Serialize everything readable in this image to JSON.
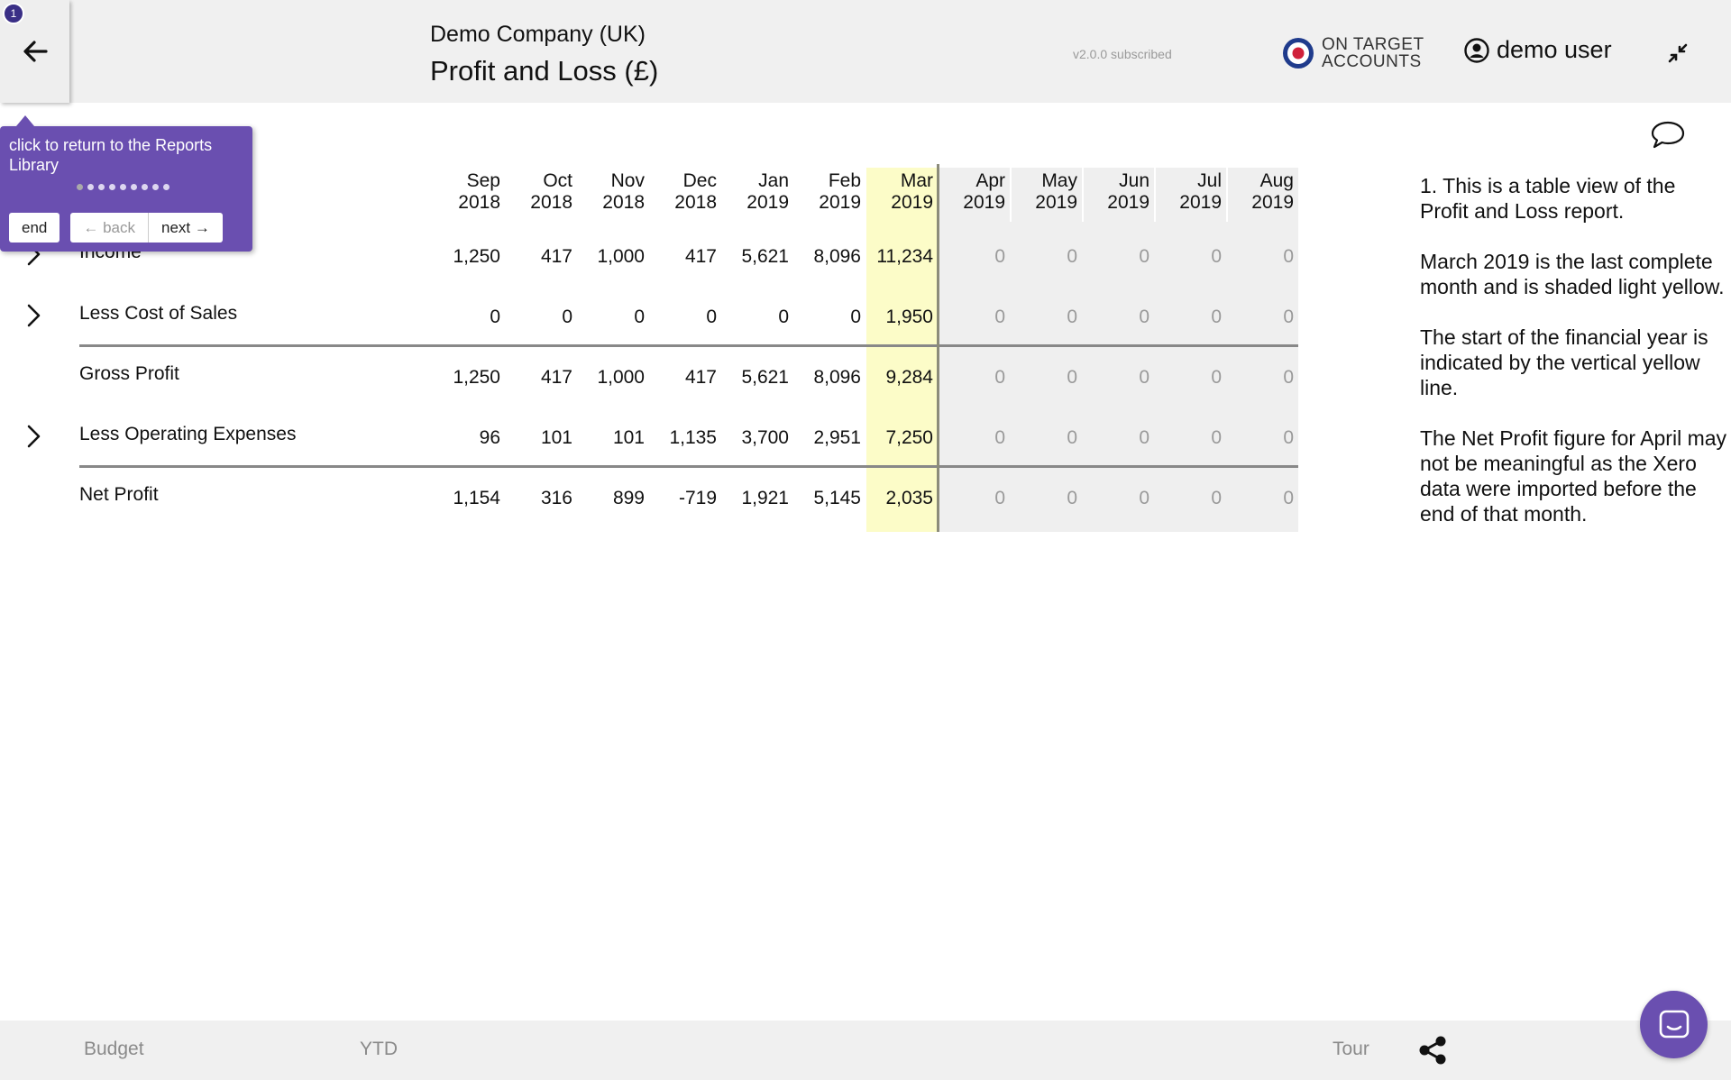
{
  "header": {
    "company": "Demo Company (UK)",
    "title": "Profit and Loss (£)",
    "version": "v2.0.0 subscribed",
    "logo_line1": "ON TARGET",
    "logo_line2": "ACCOUNTS",
    "user": "demo user",
    "tour_step": "1"
  },
  "tooltip": {
    "text": "click to return to the Reports Library",
    "dots_total": 9,
    "dots_active": 1,
    "end_label": "end",
    "back_label": "← back",
    "next_label": "next →"
  },
  "table": {
    "columns": [
      {
        "month": "Sep",
        "year": "2018"
      },
      {
        "month": "Oct",
        "year": "2018"
      },
      {
        "month": "Nov",
        "year": "2018"
      },
      {
        "month": "Dec",
        "year": "2018"
      },
      {
        "month": "Jan",
        "year": "2019"
      },
      {
        "month": "Feb",
        "year": "2019"
      },
      {
        "month": "Mar",
        "year": "2019"
      },
      {
        "month": "Apr",
        "year": "2019"
      },
      {
        "month": "May",
        "year": "2019"
      },
      {
        "month": "Jun",
        "year": "2019"
      },
      {
        "month": "Jul",
        "year": "2019"
      },
      {
        "month": "Aug",
        "year": "2019"
      }
    ],
    "rows": [
      {
        "label": "Income",
        "expandable": true,
        "values": [
          "1,250",
          "417",
          "1,000",
          "417",
          "5,621",
          "8,096",
          "11,234",
          "0",
          "0",
          "0",
          "0",
          "0"
        ]
      },
      {
        "label": "Less Cost of Sales",
        "expandable": true,
        "values": [
          "0",
          "0",
          "0",
          "0",
          "0",
          "0",
          "1,950",
          "0",
          "0",
          "0",
          "0",
          "0"
        ]
      },
      {
        "label": "Gross Profit",
        "expandable": false,
        "values": [
          "1,250",
          "417",
          "1,000",
          "417",
          "5,621",
          "8,096",
          "9,284",
          "0",
          "0",
          "0",
          "0",
          "0"
        ]
      },
      {
        "label": "Less Operating Expenses",
        "expandable": true,
        "values": [
          "96",
          "101",
          "101",
          "1,135",
          "3,700",
          "2,951",
          "7,250",
          "0",
          "0",
          "0",
          "0",
          "0"
        ]
      },
      {
        "label": "Net Profit",
        "expandable": false,
        "values": [
          "1,154",
          "316",
          "899",
          "-719",
          "1,921",
          "5,145",
          "2,035",
          "0",
          "0",
          "0",
          "0",
          "0"
        ]
      }
    ]
  },
  "notes": {
    "p1": "1. This is a table view of the Profit and Loss report.",
    "p2": "March 2019 is the last complete month and is shaded light yellow.",
    "p3": "The start of the financial year is indicated by the vertical yellow line.",
    "p4": "The Net Profit figure for April may not be meaningful as the Xero data were imported before the end of that month."
  },
  "footer": {
    "budget": "Budget",
    "ytd": "YTD",
    "tour": "Tour"
  },
  "colors": {
    "accent": "#6a4fb0",
    "last_month_shade": "#fcfcc8",
    "future_shade": "#efefef"
  }
}
